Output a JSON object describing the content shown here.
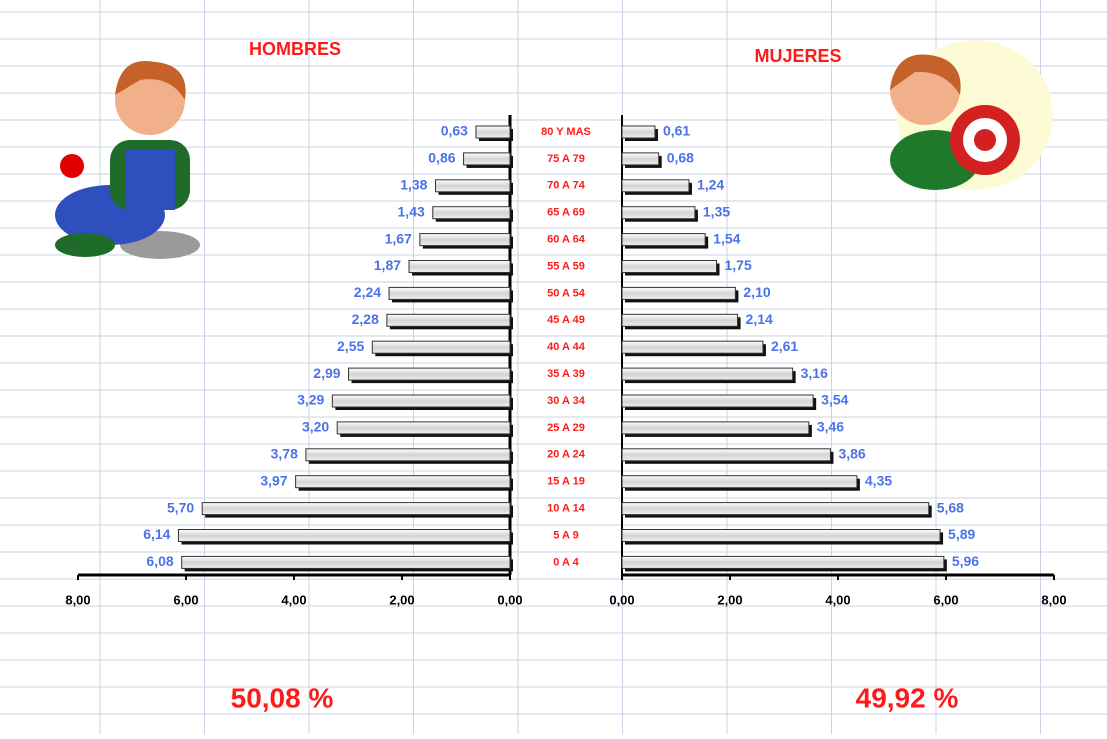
{
  "chart_data": {
    "type": "pyramid",
    "categories": [
      "80 Y MAS",
      "75 A 79",
      "70 A 74",
      "65 A 69",
      "60 A 64",
      "55 A 59",
      "50 A 54",
      "45 A 49",
      "40 A 44",
      "35 A 39",
      "30 A 34",
      "25 A 29",
      "20 A 24",
      "15 A 19",
      "10 A 14",
      "5 A 9",
      "0 A 4"
    ],
    "series": [
      {
        "name": "HOMBRES",
        "color": "#d8d8d8",
        "total": "50,08 %",
        "values": [
          0.63,
          0.86,
          1.38,
          1.43,
          1.67,
          1.87,
          2.24,
          2.28,
          2.55,
          2.99,
          3.29,
          3.2,
          3.78,
          3.97,
          5.7,
          6.14,
          6.08
        ],
        "value_labels": [
          "0,63",
          "0,86",
          "1,38",
          "1,43",
          "1,67",
          "1,87",
          "2,24",
          "2,28",
          "2,55",
          "2,99",
          "3,29",
          "3,20",
          "3,78",
          "3,97",
          "5,70",
          "6,14",
          "6,08"
        ]
      },
      {
        "name": "MUJERES",
        "color": "#d8d8d8",
        "total": "49,92 %",
        "values": [
          0.61,
          0.68,
          1.24,
          1.35,
          1.54,
          1.75,
          2.1,
          2.14,
          2.61,
          3.16,
          3.54,
          3.46,
          3.86,
          4.35,
          5.68,
          5.89,
          5.96
        ],
        "value_labels": [
          "0,61",
          "0,68",
          "1,24",
          "1,35",
          "1,54",
          "1,75",
          "2,10",
          "2,14",
          "2,61",
          "3,16",
          "3,54",
          "3,46",
          "3,86",
          "4,35",
          "5,68",
          "5,89",
          "5,96"
        ]
      }
    ],
    "xlim": [
      0,
      8
    ],
    "xticks": [
      {
        "value": 0,
        "label": "0,00"
      },
      {
        "value": 2,
        "label": "2,00"
      },
      {
        "value": 4,
        "label": "4,00"
      },
      {
        "value": 6,
        "label": "6,00"
      },
      {
        "value": 8,
        "label": "8,00"
      }
    ]
  }
}
